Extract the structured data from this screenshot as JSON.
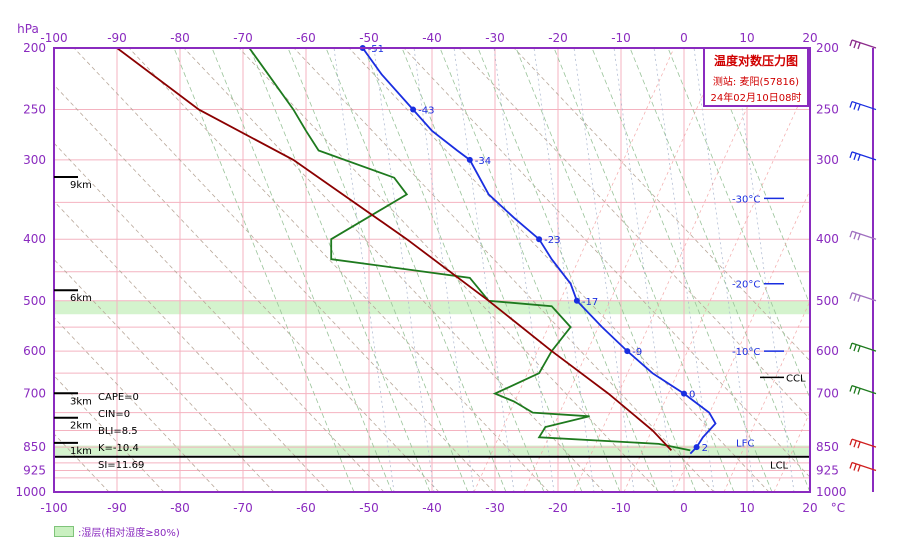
{
  "title": {
    "main": "温度对数压力图",
    "station": "测站: 麦阳(57816)",
    "time": "24年02月10日08时"
  },
  "axes": {
    "y_unit": "hPa",
    "x_unit": "°C",
    "x_ticks": [
      -100,
      -90,
      -80,
      -70,
      -60,
      -50,
      -40,
      -30,
      -20,
      -10,
      0,
      10,
      20
    ],
    "y_ticks": [
      200,
      250,
      300,
      400,
      500,
      600,
      700,
      850,
      925,
      1000
    ],
    "height_labels": [
      "9km",
      "6km",
      "3km",
      "2km",
      "1km"
    ]
  },
  "indices": {
    "cape": "CAPE=0",
    "cin": "CIN=0",
    "bli": "BLI=8.5",
    "k": "K=-10.4",
    "si": "SI=11.69"
  },
  "levels": {
    "ccl": "CCL",
    "lcl": "LCL",
    "lfc": "LFC"
  },
  "isotherm_labels": [
    "-30°C",
    "-20°C",
    "-10°C"
  ],
  "legend": {
    "text": ":湿层(相对湿度≥80%)"
  },
  "colors": {
    "temperature": "#1a2ee0",
    "dewpoint": "#1e7a1e",
    "parcel": "#8b0000",
    "frame": "#8a2bbf",
    "isobar": "#f4b3c0",
    "moist_layer": "#c9f0c0"
  },
  "chart_data": {
    "type": "line",
    "title": "温度对数压力图",
    "xlabel": "°C",
    "ylabel": "hPa",
    "xlim": [
      -100,
      20
    ],
    "ylim": [
      1000,
      200
    ],
    "y_scale": "log",
    "series": [
      {
        "name": "temperature",
        "points": [
          [
            -51,
            200
          ],
          [
            -48,
            220
          ],
          [
            -43,
            250
          ],
          [
            -40,
            270
          ],
          [
            -36,
            290
          ],
          [
            -34,
            300
          ],
          [
            -31,
            340
          ],
          [
            -27,
            370
          ],
          [
            -23,
            400
          ],
          [
            -21,
            430
          ],
          [
            -18,
            470
          ],
          [
            -17,
            500
          ],
          [
            -13,
            550
          ],
          [
            -9,
            600
          ],
          [
            -5,
            650
          ],
          [
            0,
            700
          ],
          [
            4,
            750
          ],
          [
            5,
            780
          ],
          [
            3,
            820
          ],
          [
            2,
            850
          ],
          [
            1,
            870
          ]
        ],
        "point_labels": [
          [
            -51,
            200,
            "-51"
          ],
          [
            -43,
            250,
            "-43"
          ],
          [
            -34,
            300,
            "-34"
          ],
          [
            -23,
            400,
            "-23"
          ],
          [
            -17,
            500,
            "-17"
          ],
          [
            -9,
            600,
            "-9"
          ],
          [
            0,
            700,
            "0"
          ],
          [
            2,
            850,
            "2"
          ]
        ]
      },
      {
        "name": "dewpoint",
        "points": [
          [
            -69,
            200
          ],
          [
            -66,
            220
          ],
          [
            -62,
            250
          ],
          [
            -60,
            270
          ],
          [
            -58,
            290
          ],
          [
            -46,
            320
          ],
          [
            -44,
            340
          ],
          [
            -56,
            400
          ],
          [
            -56,
            430
          ],
          [
            -34,
            460
          ],
          [
            -31,
            500
          ],
          [
            -21,
            510
          ],
          [
            -18,
            550
          ],
          [
            -21,
            600
          ],
          [
            -23,
            650
          ],
          [
            -30,
            700
          ],
          [
            -27,
            720
          ],
          [
            -24,
            750
          ],
          [
            -15,
            760
          ],
          [
            -22,
            790
          ],
          [
            -23,
            820
          ],
          [
            -4,
            840
          ],
          [
            1,
            860
          ]
        ]
      },
      {
        "name": "parcel",
        "points": [
          [
            -90,
            200
          ],
          [
            -77,
            250
          ],
          [
            -62,
            300
          ],
          [
            -44,
            400
          ],
          [
            -31,
            500
          ],
          [
            -21,
            600
          ],
          [
            -12,
            700
          ],
          [
            -5,
            800
          ],
          [
            -2,
            860
          ]
        ]
      }
    ],
    "moist_layers": [
      [
        500,
        525
      ],
      [
        845,
        875
      ]
    ],
    "special_levels": {
      "CCL": 660,
      "LCL": 880
    }
  }
}
